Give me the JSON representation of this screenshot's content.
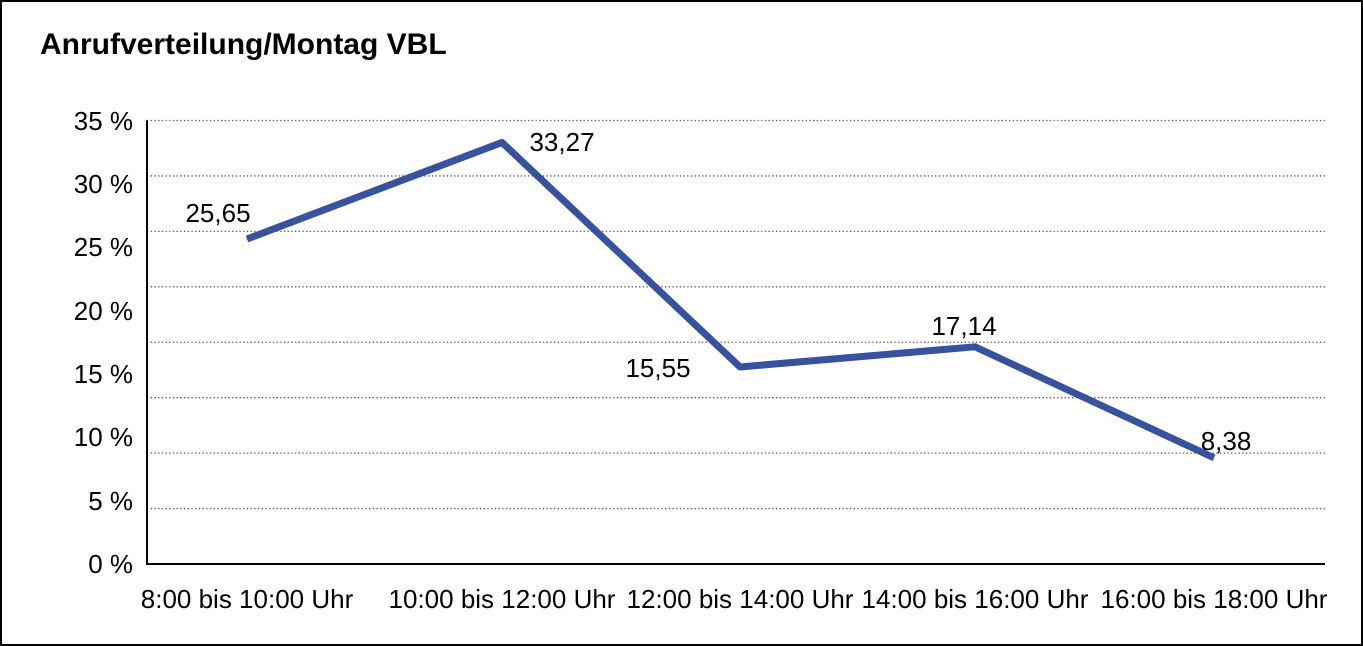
{
  "window": {
    "title": "Anrufverteilung/Montag VBL"
  },
  "chart_data": {
    "type": "line",
    "title": "Anrufverteilung/Montag VBL",
    "categories": [
      "8:00 bis 10:00 Uhr",
      "10:00 bis 12:00 Uhr",
      "12:00 bis 14:00 Uhr",
      "14:00 bis 16:00 Uhr",
      "16:00 bis 18:00 Uhr"
    ],
    "values": [
      25.65,
      33.27,
      15.55,
      17.14,
      8.38
    ],
    "value_labels": [
      "25,65",
      "33,27",
      "15,55",
      "17,14",
      "8,38"
    ],
    "xlabel": "",
    "ylabel": "",
    "ylim": [
      0,
      35
    ],
    "y_tick_labels": [
      "35 %",
      "30 %",
      "25 %",
      "20 %",
      "15 %",
      "10 %",
      "5 %",
      "0 %"
    ],
    "y_tick_values": [
      35,
      30,
      25,
      20,
      15,
      10,
      5,
      0
    ],
    "grid": "horizontal-dotted",
    "gridline_count": 9,
    "legend_position": "none",
    "line_color": "#37529E",
    "axis_color": "#000000",
    "gridline_color": "#555555",
    "background_color": "#ffffff"
  }
}
